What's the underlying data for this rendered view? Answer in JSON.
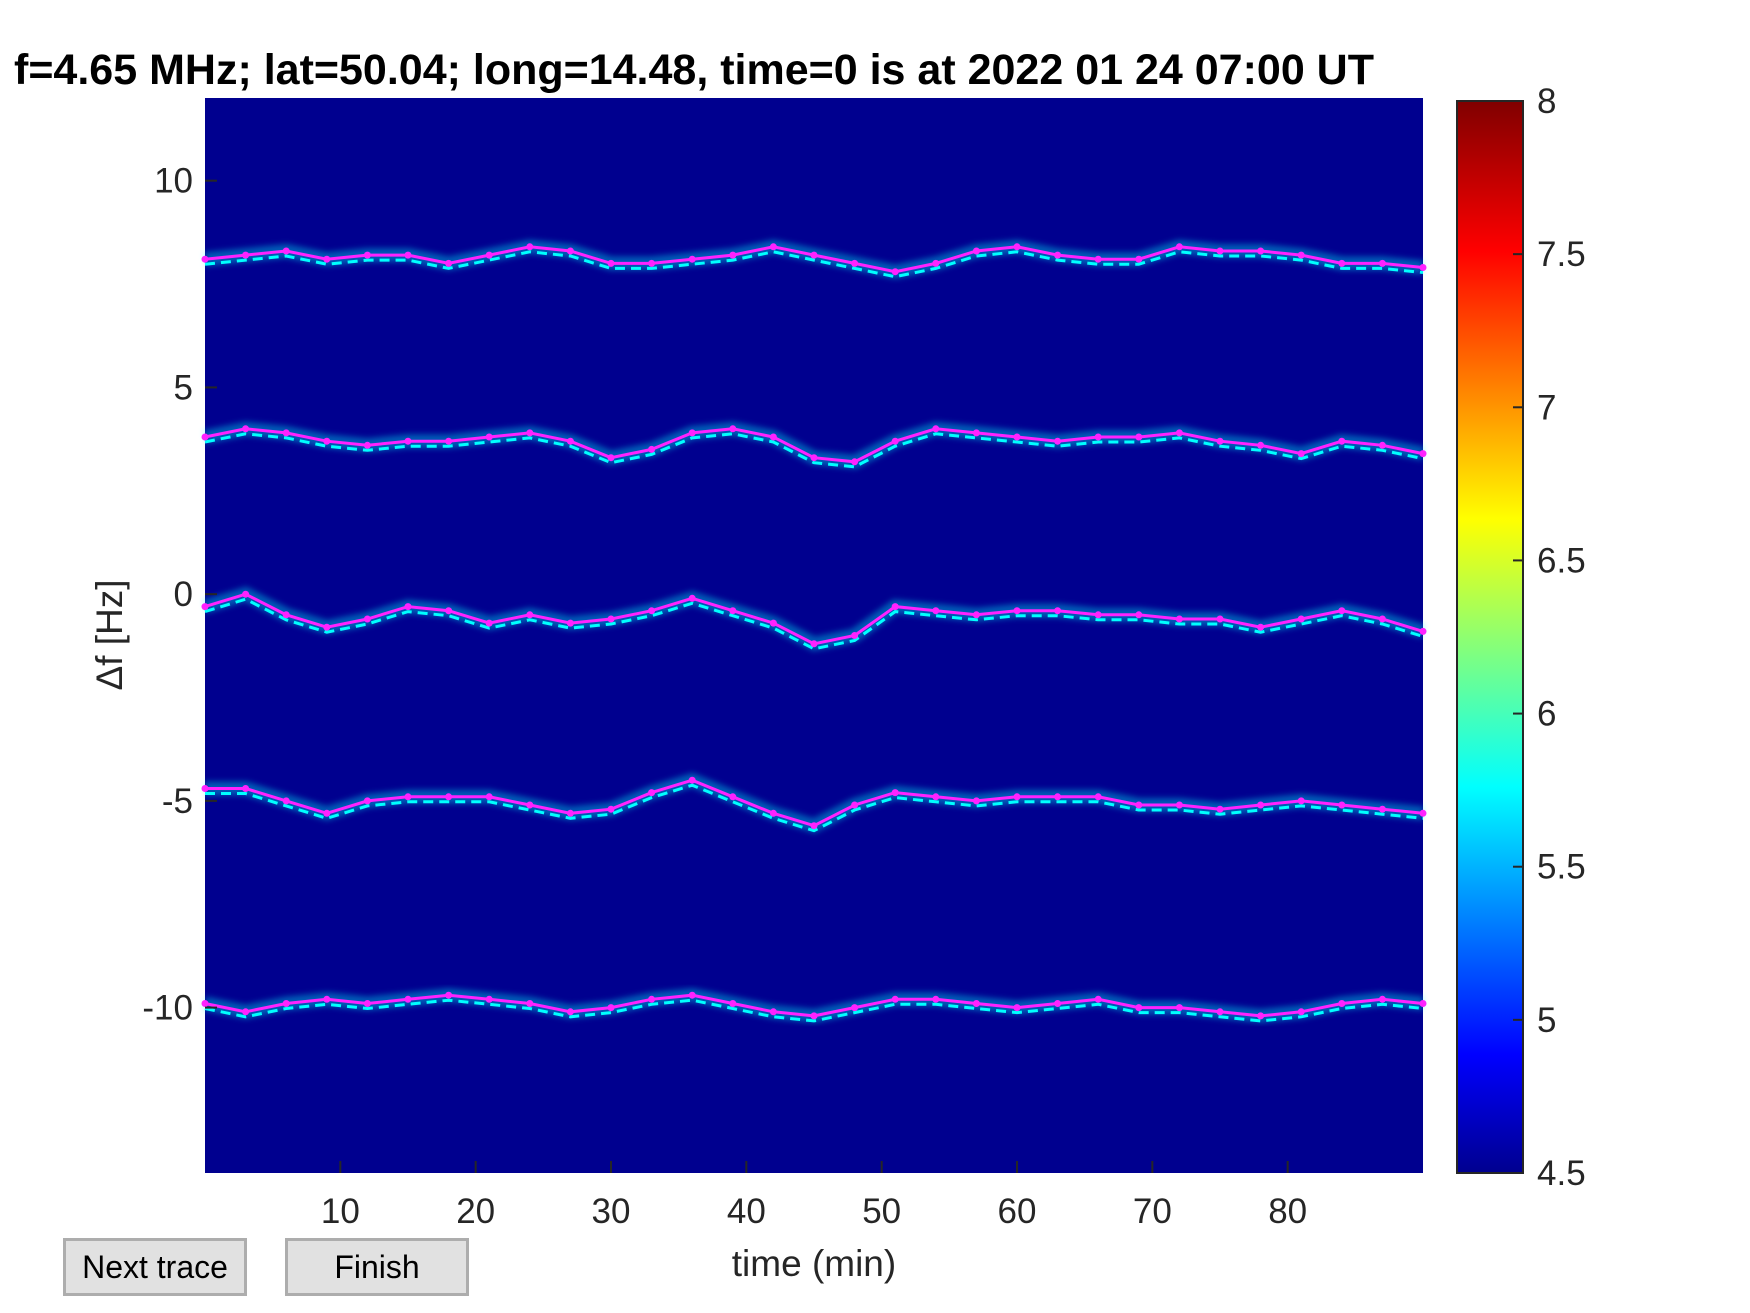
{
  "buttons": {
    "next_label": "Next trace",
    "finish_label": "Finish"
  },
  "chart_data": {
    "type": "heatmap",
    "title": "f=4.65 MHz;  lat=50.04; long=14.48, time=0 is at 2022 01 24 07:00 UT",
    "xlabel": "time (min)",
    "ylabel": "Δf [Hz]",
    "xlim": [
      0,
      90
    ],
    "ylim": [
      -14,
      12
    ],
    "xticks": [
      10,
      20,
      30,
      40,
      50,
      60,
      70,
      80
    ],
    "yticks": [
      10,
      5,
      0,
      -5,
      -10
    ],
    "colorbar": {
      "colormap": "jet",
      "clim": [
        4.5,
        8
      ],
      "ticks": [
        8,
        7.5,
        7,
        6.5,
        6,
        5.5,
        5,
        4.5
      ]
    },
    "background_color": "#00008f",
    "trace_color": "#ff22ff",
    "grid": false,
    "traces": [
      {
        "x": [
          0,
          3,
          6,
          9,
          12,
          15,
          18,
          21,
          24,
          27,
          30,
          33,
          36,
          39,
          42,
          45,
          48,
          51,
          54,
          57,
          60,
          63,
          66,
          69,
          72,
          75,
          78,
          81,
          84,
          87,
          90
        ],
        "y": [
          8.1,
          8.2,
          8.3,
          8.1,
          8.2,
          8.2,
          8.0,
          8.2,
          8.4,
          8.3,
          8.0,
          8.0,
          8.1,
          8.2,
          8.4,
          8.2,
          8.0,
          7.8,
          8.0,
          8.3,
          8.4,
          8.2,
          8.1,
          8.1,
          8.4,
          8.3,
          8.3,
          8.2,
          8.0,
          8.0,
          7.9
        ]
      },
      {
        "x": [
          0,
          3,
          6,
          9,
          12,
          15,
          18,
          21,
          24,
          27,
          30,
          33,
          36,
          39,
          42,
          45,
          48,
          51,
          54,
          57,
          60,
          63,
          66,
          69,
          72,
          75,
          78,
          81,
          84,
          87,
          90
        ],
        "y": [
          3.8,
          4.0,
          3.9,
          3.7,
          3.6,
          3.7,
          3.7,
          3.8,
          3.9,
          3.7,
          3.3,
          3.5,
          3.9,
          4.0,
          3.8,
          3.3,
          3.2,
          3.7,
          4.0,
          3.9,
          3.8,
          3.7,
          3.8,
          3.8,
          3.9,
          3.7,
          3.6,
          3.4,
          3.7,
          3.6,
          3.4
        ]
      },
      {
        "x": [
          0,
          3,
          6,
          9,
          12,
          15,
          18,
          21,
          24,
          27,
          30,
          33,
          36,
          39,
          42,
          45,
          48,
          51,
          54,
          57,
          60,
          63,
          66,
          69,
          72,
          75,
          78,
          81,
          84,
          87,
          90
        ],
        "y": [
          -0.3,
          0.0,
          -0.5,
          -0.8,
          -0.6,
          -0.3,
          -0.4,
          -0.7,
          -0.5,
          -0.7,
          -0.6,
          -0.4,
          -0.1,
          -0.4,
          -0.7,
          -1.2,
          -1.0,
          -0.3,
          -0.4,
          -0.5,
          -0.4,
          -0.4,
          -0.5,
          -0.5,
          -0.6,
          -0.6,
          -0.8,
          -0.6,
          -0.4,
          -0.6,
          -0.9
        ]
      },
      {
        "x": [
          0,
          3,
          6,
          9,
          12,
          15,
          18,
          21,
          24,
          27,
          30,
          33,
          36,
          39,
          42,
          45,
          48,
          51,
          54,
          57,
          60,
          63,
          66,
          69,
          72,
          75,
          78,
          81,
          84,
          87,
          90
        ],
        "y": [
          -4.7,
          -4.7,
          -5.0,
          -5.3,
          -5.0,
          -4.9,
          -4.9,
          -4.9,
          -5.1,
          -5.3,
          -5.2,
          -4.8,
          -4.5,
          -4.9,
          -5.3,
          -5.6,
          -5.1,
          -4.8,
          -4.9,
          -5.0,
          -4.9,
          -4.9,
          -4.9,
          -5.1,
          -5.1,
          -5.2,
          -5.1,
          -5.0,
          -5.1,
          -5.2,
          -5.3
        ]
      },
      {
        "x": [
          0,
          3,
          6,
          9,
          12,
          15,
          18,
          21,
          24,
          27,
          30,
          33,
          36,
          39,
          42,
          45,
          48,
          51,
          54,
          57,
          60,
          63,
          66,
          69,
          72,
          75,
          78,
          81,
          84,
          87,
          90
        ],
        "y": [
          -9.9,
          -10.1,
          -9.9,
          -9.8,
          -9.9,
          -9.8,
          -9.7,
          -9.8,
          -9.9,
          -10.1,
          -10.0,
          -9.8,
          -9.7,
          -9.9,
          -10.1,
          -10.2,
          -10.0,
          -9.8,
          -9.8,
          -9.9,
          -10.0,
          -9.9,
          -9.8,
          -10.0,
          -10.0,
          -10.1,
          -10.2,
          -10.1,
          -9.9,
          -9.8,
          -9.9
        ]
      }
    ]
  }
}
